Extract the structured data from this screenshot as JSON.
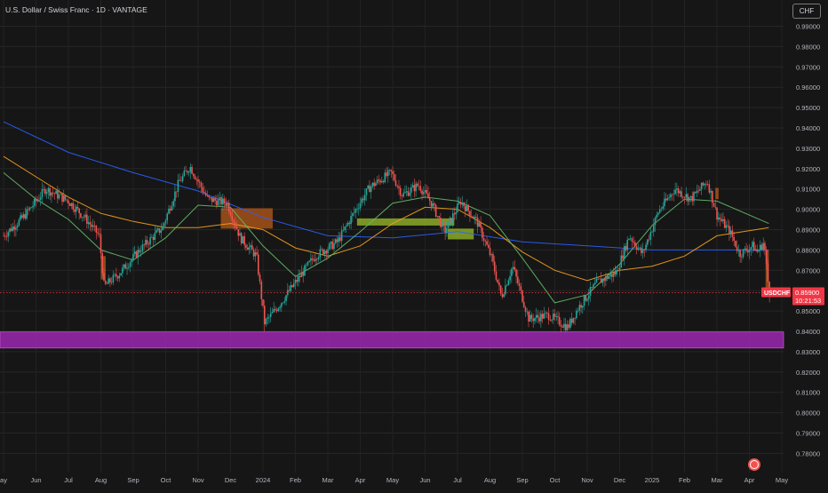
{
  "header": {
    "title": "U.S. Dollar / Swiss Franc · 1D · VANTAGE",
    "currency": "CHF"
  },
  "price_label": {
    "symbol": "USDCHF",
    "price": "0.85900",
    "countdown": "10:21:53",
    "color": "#f23645"
  },
  "colors": {
    "background": "#161616",
    "up": "#26a69a",
    "down": "#ef5350",
    "ma_blue": "#2962ff",
    "ma_orange": "#f7a21b",
    "ma_green": "#66bb6a",
    "support_zone": "#9c27b0",
    "bull_fvg": "#9bbf2a",
    "bear_fvg": "#b85a1a"
  },
  "chart_data": {
    "type": "candlestick",
    "symbol": "USDCHF",
    "timeframe": "1D",
    "ylim": [
      0.775,
      0.998
    ],
    "yticks": [
      "0.99000",
      "0.98000",
      "0.97000",
      "0.96000",
      "0.95000",
      "0.94000",
      "0.93000",
      "0.92000",
      "0.91000",
      "0.90000",
      "0.89000",
      "0.88000",
      "0.87000",
      "0.86000",
      "0.85000",
      "0.84000",
      "0.83000",
      "0.82000",
      "0.81000",
      "0.80000",
      "0.79000",
      "0.78000"
    ],
    "xticks": [
      "ay",
      "Jun",
      "Jul",
      "Aug",
      "Sep",
      "Oct",
      "Nov",
      "Dec",
      "2024",
      "Feb",
      "Mar",
      "Apr",
      "May",
      "Jun",
      "Jul",
      "Aug",
      "Sep",
      "Oct",
      "Nov",
      "Dec",
      "2025",
      "Feb",
      "Mar",
      "Apr",
      "May"
    ],
    "price_path": [
      {
        "t": 0,
        "p": 0.887
      },
      {
        "t": 0.6,
        "p": 0.896
      },
      {
        "t": 1.3,
        "p": 0.91
      },
      {
        "t": 2.0,
        "p": 0.904
      },
      {
        "t": 2.5,
        "p": 0.896
      },
      {
        "t": 2.95,
        "p": 0.887
      },
      {
        "t": 3.1,
        "p": 0.862
      },
      {
        "t": 3.6,
        "p": 0.869
      },
      {
        "t": 4.2,
        "p": 0.88
      },
      {
        "t": 4.9,
        "p": 0.891
      },
      {
        "t": 5.4,
        "p": 0.913
      },
      {
        "t": 5.75,
        "p": 0.921
      },
      {
        "t": 6.3,
        "p": 0.905
      },
      {
        "t": 6.9,
        "p": 0.903
      },
      {
        "t": 7.3,
        "p": 0.886
      },
      {
        "t": 7.8,
        "p": 0.877
      },
      {
        "t": 8.05,
        "p": 0.844
      },
      {
        "t": 8.5,
        "p": 0.853
      },
      {
        "t": 9.0,
        "p": 0.864
      },
      {
        "t": 9.6,
        "p": 0.877
      },
      {
        "t": 10.3,
        "p": 0.884
      },
      {
        "t": 10.9,
        "p": 0.901
      },
      {
        "t": 11.3,
        "p": 0.911
      },
      {
        "t": 11.95,
        "p": 0.918
      },
      {
        "t": 12.3,
        "p": 0.907
      },
      {
        "t": 12.8,
        "p": 0.912
      },
      {
        "t": 13.2,
        "p": 0.903
      },
      {
        "t": 13.6,
        "p": 0.889
      },
      {
        "t": 14.1,
        "p": 0.904
      },
      {
        "t": 14.6,
        "p": 0.894
      },
      {
        "t": 15.05,
        "p": 0.876
      },
      {
        "t": 15.35,
        "p": 0.857
      },
      {
        "t": 15.7,
        "p": 0.872
      },
      {
        "t": 16.2,
        "p": 0.846
      },
      {
        "t": 16.8,
        "p": 0.848
      },
      {
        "t": 17.4,
        "p": 0.842
      },
      {
        "t": 17.7,
        "p": 0.851
      },
      {
        "t": 18.3,
        "p": 0.864
      },
      {
        "t": 18.9,
        "p": 0.869
      },
      {
        "t": 19.3,
        "p": 0.887
      },
      {
        "t": 19.7,
        "p": 0.878
      },
      {
        "t": 20.2,
        "p": 0.899
      },
      {
        "t": 20.7,
        "p": 0.91
      },
      {
        "t": 21.2,
        "p": 0.905
      },
      {
        "t": 21.7,
        "p": 0.914
      },
      {
        "t": 22.0,
        "p": 0.897
      },
      {
        "t": 22.4,
        "p": 0.889
      },
      {
        "t": 22.7,
        "p": 0.878
      },
      {
        "t": 23.1,
        "p": 0.882
      },
      {
        "t": 23.25,
        "p": 0.879
      },
      {
        "t": 23.45,
        "p": 0.884
      },
      {
        "t": 23.6,
        "p": 0.86
      },
      {
        "t": 23.62,
        "p": 0.859
      }
    ],
    "series": [
      {
        "kind": "sma",
        "color": "#2962ff",
        "points": [
          {
            "t": 0,
            "p": 0.943
          },
          {
            "t": 2,
            "p": 0.928
          },
          {
            "t": 4,
            "p": 0.918
          },
          {
            "t": 6,
            "p": 0.909
          },
          {
            "t": 8,
            "p": 0.896
          },
          {
            "t": 10,
            "p": 0.887
          },
          {
            "t": 12,
            "p": 0.886
          },
          {
            "t": 14,
            "p": 0.889
          },
          {
            "t": 16,
            "p": 0.884
          },
          {
            "t": 18,
            "p": 0.882
          },
          {
            "t": 20,
            "p": 0.88
          },
          {
            "t": 22,
            "p": 0.88
          },
          {
            "t": 23.6,
            "p": 0.88
          }
        ]
      },
      {
        "kind": "sma",
        "color": "#f7a21b",
        "points": [
          {
            "t": 0,
            "p": 0.926
          },
          {
            "t": 1,
            "p": 0.916
          },
          {
            "t": 2,
            "p": 0.906
          },
          {
            "t": 3,
            "p": 0.898
          },
          {
            "t": 4,
            "p": 0.894
          },
          {
            "t": 5,
            "p": 0.891
          },
          {
            "t": 6,
            "p": 0.891
          },
          {
            "t": 7,
            "p": 0.893
          },
          {
            "t": 8,
            "p": 0.89
          },
          {
            "t": 9,
            "p": 0.881
          },
          {
            "t": 10,
            "p": 0.877
          },
          {
            "t": 11,
            "p": 0.882
          },
          {
            "t": 12,
            "p": 0.893
          },
          {
            "t": 13,
            "p": 0.901
          },
          {
            "t": 14,
            "p": 0.9
          },
          {
            "t": 15,
            "p": 0.891
          },
          {
            "t": 16,
            "p": 0.879
          },
          {
            "t": 17,
            "p": 0.87
          },
          {
            "t": 18,
            "p": 0.865
          },
          {
            "t": 19,
            "p": 0.87
          },
          {
            "t": 20,
            "p": 0.872
          },
          {
            "t": 21,
            "p": 0.877
          },
          {
            "t": 22,
            "p": 0.887
          },
          {
            "t": 23.6,
            "p": 0.891
          }
        ]
      },
      {
        "kind": "sma",
        "color": "#66bb6a",
        "points": [
          {
            "t": 0,
            "p": 0.918
          },
          {
            "t": 1,
            "p": 0.905
          },
          {
            "t": 2,
            "p": 0.895
          },
          {
            "t": 3,
            "p": 0.88
          },
          {
            "t": 4,
            "p": 0.875
          },
          {
            "t": 5,
            "p": 0.886
          },
          {
            "t": 6,
            "p": 0.902
          },
          {
            "t": 7,
            "p": 0.901
          },
          {
            "t": 8,
            "p": 0.882
          },
          {
            "t": 9,
            "p": 0.867
          },
          {
            "t": 10,
            "p": 0.876
          },
          {
            "t": 11,
            "p": 0.889
          },
          {
            "t": 12,
            "p": 0.903
          },
          {
            "t": 13,
            "p": 0.906
          },
          {
            "t": 14,
            "p": 0.904
          },
          {
            "t": 15,
            "p": 0.897
          },
          {
            "t": 16,
            "p": 0.876
          },
          {
            "t": 17,
            "p": 0.854
          },
          {
            "t": 18,
            "p": 0.858
          },
          {
            "t": 19,
            "p": 0.873
          },
          {
            "t": 20,
            "p": 0.892
          },
          {
            "t": 21,
            "p": 0.905
          },
          {
            "t": 22,
            "p": 0.904
          },
          {
            "t": 23.6,
            "p": 0.893
          }
        ]
      }
    ],
    "zones": [
      {
        "kind": "support",
        "color": "#9c27b0",
        "t0": 0,
        "t1": 23.8,
        "p_top": 0.8397,
        "p_bottom": 0.8318
      },
      {
        "kind": "bear_fvg",
        "color": "#b85a1a",
        "t0": 3.0,
        "t1": 3.15,
        "p_top": 0.877,
        "p_bottom": 0.8655
      },
      {
        "kind": "bear_fvg",
        "color": "#b85a1a",
        "t0": 6.7,
        "t1": 8.3,
        "p_top": 0.9005,
        "p_bottom": 0.8905
      },
      {
        "kind": "bull_fvg",
        "color": "#9bbf2a",
        "t0": 10.9,
        "t1": 13.9,
        "p_top": 0.8955,
        "p_bottom": 0.892
      },
      {
        "kind": "bull_fvg",
        "color": "#9bbf2a",
        "t0": 13.7,
        "t1": 14.5,
        "p_top": 0.8905,
        "p_bottom": 0.8852
      },
      {
        "kind": "bear_fvg",
        "color": "#b85a1a",
        "t0": 21.95,
        "t1": 22.05,
        "p_top": 0.9105,
        "p_bottom": 0.905
      },
      {
        "kind": "bear_fvg",
        "color": "#b85a1a",
        "t0": 23.5,
        "t1": 23.6,
        "p_top": 0.88,
        "p_bottom": 0.858
      }
    ]
  }
}
